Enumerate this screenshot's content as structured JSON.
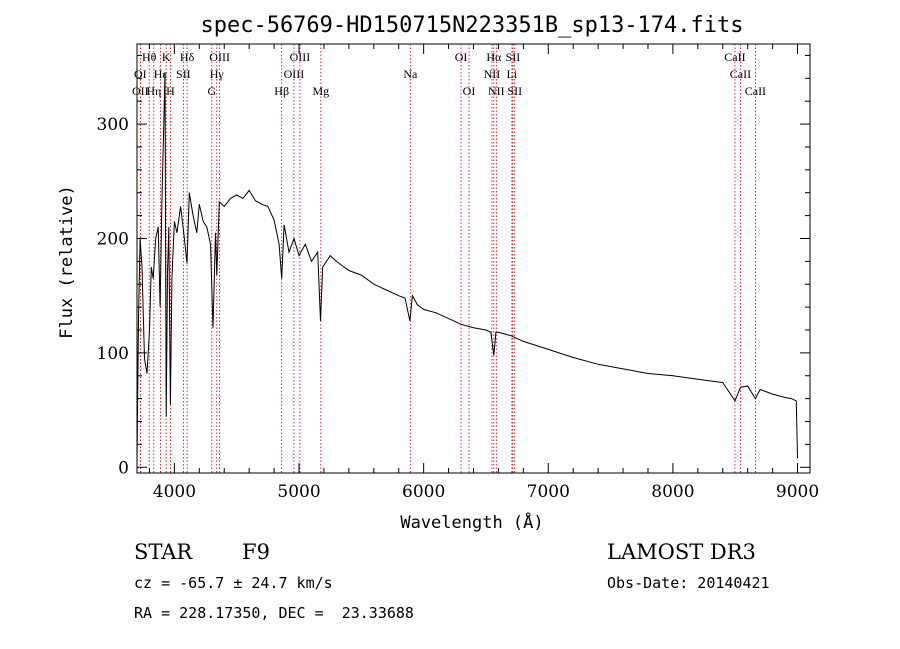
{
  "chart_data": {
    "type": "line",
    "title": "spec-56769-HD150715N223351B_sp13-174.fits",
    "xlabel": "Wavelength (Å)",
    "ylabel": "Flux (relative)",
    "xlim": [
      3700,
      9100
    ],
    "ylim": [
      -5,
      370
    ],
    "x_ticks": [
      4000,
      5000,
      6000,
      7000,
      8000,
      9000
    ],
    "y_ticks": [
      0,
      100,
      200,
      300
    ],
    "x_tick_labels": [
      "4000",
      "5000",
      "6000",
      "7000",
      "8000",
      "9000"
    ],
    "y_tick_labels": [
      "0",
      "100",
      "200",
      "300"
    ],
    "series": [
      {
        "name": "flux",
        "x": [
          3700,
          3712,
          3725,
          3740,
          3760,
          3780,
          3800,
          3815,
          3830,
          3850,
          3870,
          3885,
          3900,
          3910,
          3925,
          3934,
          3945,
          3955,
          3968,
          3980,
          4000,
          4020,
          4050,
          4080,
          4101,
          4120,
          4150,
          4180,
          4200,
          4230,
          4260,
          4290,
          4310,
          4330,
          4340,
          4360,
          4400,
          4450,
          4500,
          4550,
          4600,
          4650,
          4700,
          4750,
          4800,
          4840,
          4861,
          4880,
          4920,
          4960,
          5000,
          5050,
          5100,
          5150,
          5172,
          5190,
          5250,
          5300,
          5400,
          5500,
          5600,
          5700,
          5800,
          5850,
          5890,
          5910,
          5950,
          6000,
          6100,
          6200,
          6300,
          6400,
          6500,
          6540,
          6563,
          6580,
          6600,
          6700,
          6800,
          7000,
          7200,
          7400,
          7600,
          7800,
          8000,
          8200,
          8400,
          8498,
          8542,
          8600,
          8662,
          8700,
          8800,
          8900,
          8950,
          8990,
          9000
        ],
        "y": [
          2,
          130,
          200,
          175,
          95,
          82,
          120,
          175,
          165,
          200,
          210,
          140,
          232,
          280,
          345,
          44,
          170,
          210,
          55,
          165,
          215,
          205,
          228,
          200,
          178,
          240,
          220,
          205,
          230,
          215,
          210,
          195,
          122,
          205,
          168,
          232,
          228,
          235,
          238,
          235,
          242,
          233,
          230,
          228,
          216,
          195,
          165,
          212,
          188,
          200,
          185,
          195,
          180,
          188,
          128,
          175,
          185,
          180,
          172,
          168,
          160,
          155,
          150,
          148,
          128,
          150,
          142,
          138,
          135,
          130,
          125,
          122,
          120,
          118,
          98,
          118,
          118,
          115,
          110,
          103,
          96,
          90,
          86,
          82,
          80,
          77,
          74,
          58,
          70,
          71,
          60,
          68,
          64,
          61,
          60,
          58,
          8
        ]
      }
    ],
    "spectral_lines": [
      {
        "label": "Hθ",
        "wavelength": 3798,
        "row": 1
      },
      {
        "label": "K",
        "wavelength": 3934,
        "row": 1
      },
      {
        "label": "Hδ",
        "wavelength": 4102,
        "row": 1
      },
      {
        "label": "OIII",
        "wavelength": 4363,
        "row": 1
      },
      {
        "label": "OIII",
        "wavelength": 5007,
        "row": 1
      },
      {
        "label": "OI",
        "wavelength": 6300,
        "row": 1
      },
      {
        "label": "Hα",
        "wavelength": 6563,
        "row": 1
      },
      {
        "label": "SII",
        "wavelength": 6716,
        "row": 1
      },
      {
        "label": "CaII",
        "wavelength": 8498,
        "row": 1
      },
      {
        "label": "OI",
        "wavelength": 3727,
        "row": 2
      },
      {
        "label": "Hε",
        "wavelength": 3889,
        "row": 2
      },
      {
        "label": "SII",
        "wavelength": 4072,
        "row": 2
      },
      {
        "label": "Hγ",
        "wavelength": 4340,
        "row": 2
      },
      {
        "label": "OIII",
        "wavelength": 4959,
        "row": 2
      },
      {
        "label": "Na",
        "wavelength": 5893,
        "row": 2
      },
      {
        "label": "NII",
        "wavelength": 6548,
        "row": 2
      },
      {
        "label": "Li",
        "wavelength": 6708,
        "row": 2
      },
      {
        "label": "CaII",
        "wavelength": 8542,
        "row": 2
      },
      {
        "label": "OII",
        "wavelength": 3727,
        "row": 3
      },
      {
        "label": "Hη",
        "wavelength": 3835,
        "row": 3
      },
      {
        "label": "H",
        "wavelength": 3968,
        "row": 3
      },
      {
        "label": "G",
        "wavelength": 4300,
        "row": 3
      },
      {
        "label": "Hβ",
        "wavelength": 4861,
        "row": 3
      },
      {
        "label": "Mg",
        "wavelength": 5175,
        "row": 3
      },
      {
        "label": "OI",
        "wavelength": 6364,
        "row": 3
      },
      {
        "label": "NII",
        "wavelength": 6583,
        "row": 3
      },
      {
        "label": "SII",
        "wavelength": 6731,
        "row": 3
      },
      {
        "label": "CaII",
        "wavelength": 8662,
        "row": 3
      }
    ],
    "line_color": "#000000",
    "marker_color": "#c00000",
    "grid": false
  },
  "info": {
    "object_class": "STAR",
    "subclass": "F9",
    "survey": "LAMOST DR3",
    "cz": "cz = -65.7 ± 24.7 km/s",
    "obs_date": "Obs-Date: 20140421",
    "coords": "RA = 228.17350, DEC =  23.33688"
  }
}
